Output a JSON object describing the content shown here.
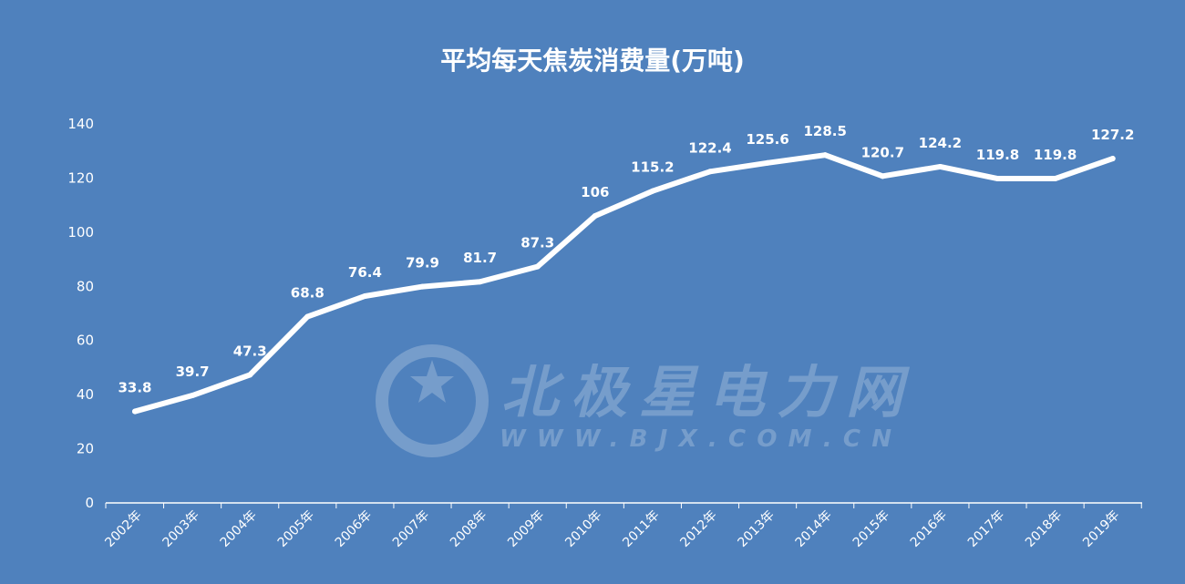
{
  "chart_data": {
    "type": "line",
    "title": "平均每天焦炭消费量(万吨)",
    "categories": [
      "2002年",
      "2003年",
      "2004年",
      "2005年",
      "2006年",
      "2007年",
      "2008年",
      "2009年",
      "2010年",
      "2011年",
      "2012年",
      "2013年",
      "2014年",
      "2015年",
      "2016年",
      "2017年",
      "2018年",
      "2019年"
    ],
    "values": [
      33.8,
      39.7,
      47.3,
      68.8,
      76.4,
      79.9,
      81.7,
      87.3,
      106,
      115.2,
      122.4,
      125.6,
      128.5,
      120.7,
      124.2,
      119.8,
      119.8,
      127.2
    ],
    "data_labels": [
      "33.8",
      "39.7",
      "47.3",
      "68.8",
      "76.4",
      "79.9",
      "81.7",
      "87.3",
      "106",
      "115.2",
      "122.4",
      "125.6",
      "128.5",
      "120.7",
      "124.2",
      "119.8",
      "119.8",
      "127.2"
    ],
    "yticks": [
      "0",
      "20",
      "40",
      "60",
      "80",
      "100",
      "120",
      "140"
    ],
    "ylim": [
      0,
      140
    ],
    "grid": false,
    "drop_lines": true,
    "colors": {
      "background": "#4f81bd",
      "line": "#ffffff"
    }
  },
  "watermark": {
    "logo_icon": "star-badge-icon",
    "text": "北极星电力网",
    "url": "WWW.BJX.COM.CN"
  }
}
